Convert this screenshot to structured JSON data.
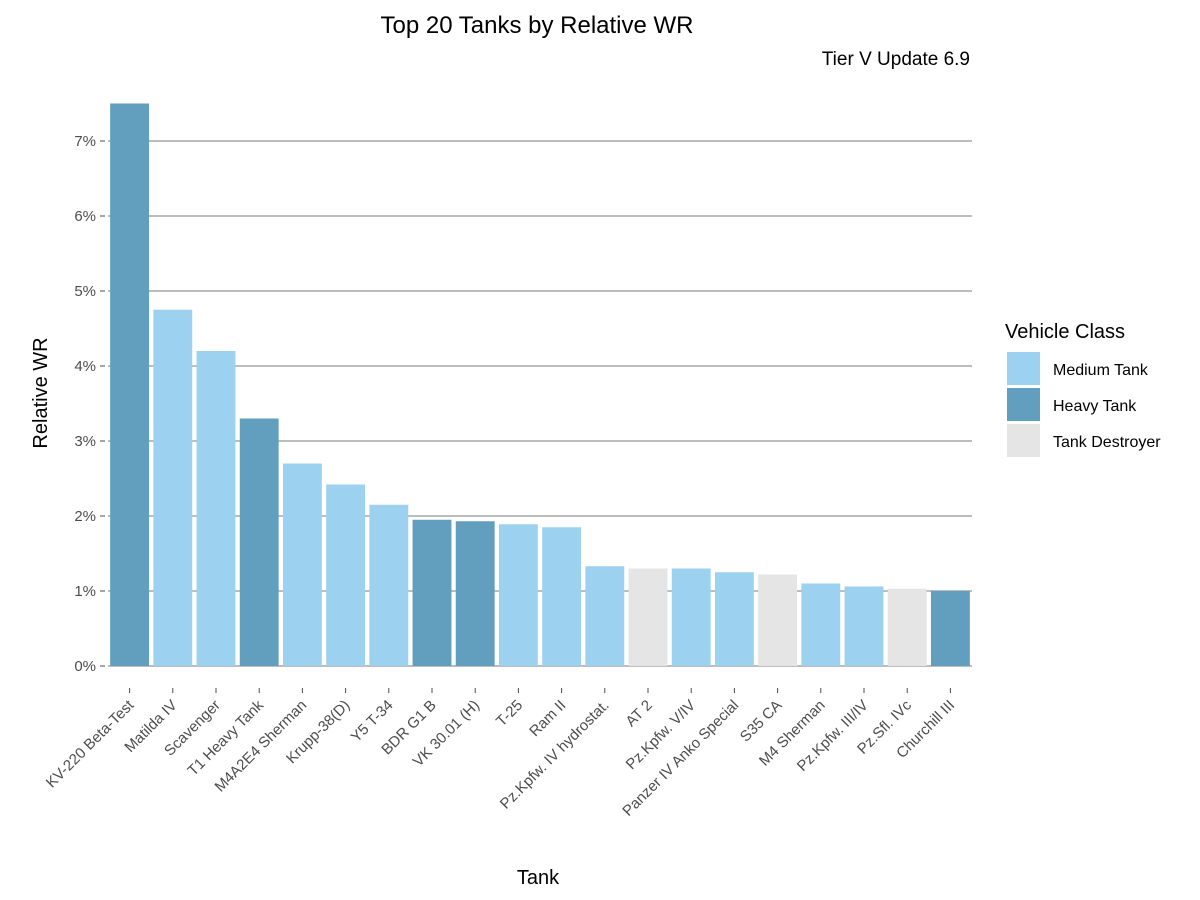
{
  "chart_data": {
    "type": "bar",
    "title": "Top 20 Tanks by Relative WR",
    "subtitle": "Tier V Update 6.9",
    "xlabel": "Tank",
    "ylabel": "Relative WR",
    "ylim": [
      0,
      7.6
    ],
    "yticks": [
      0,
      1,
      2,
      3,
      4,
      5,
      6,
      7
    ],
    "yticklabels": [
      "0%",
      "1%",
      "2%",
      "3%",
      "4%",
      "5%",
      "6%",
      "7%"
    ],
    "grid": "horizontal major",
    "legend_position": "right",
    "legend_title": "Vehicle Class",
    "legend": [
      {
        "name": "Medium Tank",
        "color": "#9dd1f0"
      },
      {
        "name": "Heavy Tank",
        "color": "#629ebe"
      },
      {
        "name": "Tank Destroyer",
        "color": "#e5e5e5"
      }
    ],
    "categories": [
      "KV-220 Beta-Test",
      "Matilda IV",
      "Scavenger",
      "T1 Heavy Tank",
      "M4A2E4 Sherman",
      "Krupp-38(D)",
      "Y5 T-34",
      "BDR G1 B",
      "VK 30.01 (H)",
      "T-25",
      "Ram II",
      "Pz.Kpfw. IV hydrostat.",
      "AT 2",
      "Pz.Kpfw. V/IV",
      "Panzer IV Anko Special",
      "S35 CA",
      "M4 Sherman",
      "Pz.Kpfw. III/IV",
      "Pz.Sfl. IVc",
      "Churchill III"
    ],
    "values": [
      7.5,
      4.75,
      4.2,
      3.3,
      2.7,
      2.42,
      2.15,
      1.95,
      1.93,
      1.89,
      1.85,
      1.33,
      1.3,
      1.3,
      1.25,
      1.22,
      1.1,
      1.06,
      1.03,
      1.0
    ],
    "classes": [
      "Heavy Tank",
      "Medium Tank",
      "Medium Tank",
      "Heavy Tank",
      "Medium Tank",
      "Medium Tank",
      "Medium Tank",
      "Heavy Tank",
      "Heavy Tank",
      "Medium Tank",
      "Medium Tank",
      "Medium Tank",
      "Tank Destroyer",
      "Medium Tank",
      "Medium Tank",
      "Tank Destroyer",
      "Medium Tank",
      "Medium Tank",
      "Tank Destroyer",
      "Heavy Tank"
    ]
  }
}
